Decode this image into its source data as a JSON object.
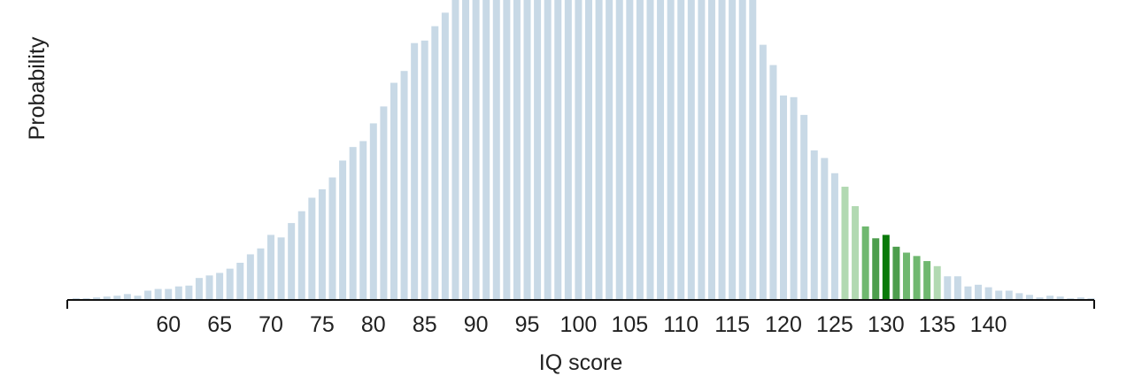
{
  "chart_data": {
    "type": "bar",
    "xlabel": "IQ score",
    "ylabel": "Probability",
    "x_start": 51,
    "x_end": 150,
    "xticks": [
      60,
      65,
      70,
      75,
      80,
      85,
      90,
      95,
      100,
      105,
      110,
      115,
      120,
      125,
      130,
      135,
      140
    ],
    "ylim": [
      0,
      0.0355
    ],
    "grid": false,
    "bar_values": [
      0.0002,
      0.0002,
      0.0003,
      0.0004,
      0.0005,
      0.0007,
      0.0005,
      0.0011,
      0.0013,
      0.0013,
      0.0016,
      0.0017,
      0.0026,
      0.0029,
      0.0032,
      0.0037,
      0.0044,
      0.0054,
      0.0061,
      0.0077,
      0.0074,
      0.0091,
      0.0105,
      0.0121,
      0.0131,
      0.0145,
      0.0165,
      0.0181,
      0.0188,
      0.0209,
      0.0229,
      0.0257,
      0.0271,
      0.0304,
      0.0307,
      0.0324,
      0.034,
      0.0355,
      0.0355,
      0.0355,
      0.0355,
      0.0355,
      0.0355,
      0.0355,
      0.0355,
      0.0355,
      0.0355,
      0.0355,
      0.0355,
      0.0355,
      0.0355,
      0.0355,
      0.0355,
      0.0355,
      0.0355,
      0.0355,
      0.0355,
      0.0355,
      0.0355,
      0.0355,
      0.0355,
      0.0355,
      0.0355,
      0.0355,
      0.0355,
      0.0355,
      0.0355,
      0.0302,
      0.0278,
      0.0242,
      0.024,
      0.0219,
      0.0177,
      0.0168,
      0.015,
      0.0134,
      0.0111,
      0.0087,
      0.0073,
      0.0077,
      0.0063,
      0.0056,
      0.0052,
      0.0046,
      0.004,
      0.0028,
      0.0028,
      0.0016,
      0.0018,
      0.0015,
      0.0011,
      0.0011,
      0.0008,
      0.0006,
      0.0003,
      0.0005,
      0.0004,
      0.0002,
      0.0003,
      0.0002
    ],
    "highlight": {
      "from": 126,
      "to": 135,
      "peak": 130
    },
    "colors": {
      "base": "#c8d9e6",
      "highlight_light": "#b2d9b2",
      "highlight_mid": "#6fb86f",
      "highlight_dark": "#4d9e4d",
      "highlight_peak": "#0a7a0a",
      "axis": "#111111",
      "text": "#222222"
    }
  }
}
